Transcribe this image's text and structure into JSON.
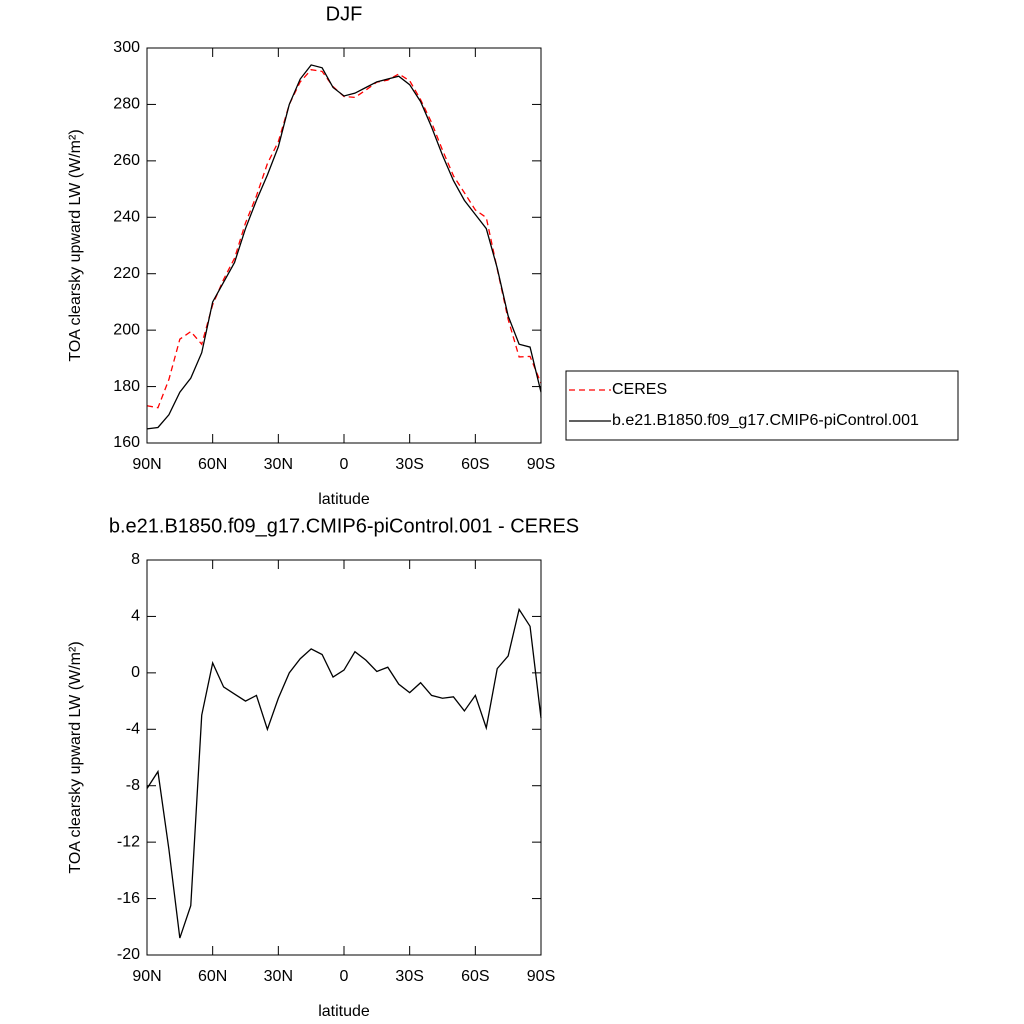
{
  "chart_data": [
    {
      "type": "line",
      "title": "DJF",
      "x_label": "latitude",
      "y_label": "TOA clearsky upward LW (W/m²)",
      "x": [
        90,
        85,
        80,
        75,
        70,
        65,
        60,
        55,
        50,
        45,
        40,
        35,
        30,
        25,
        20,
        15,
        10,
        5,
        0,
        -5,
        -10,
        -15,
        -20,
        -25,
        -30,
        -35,
        -40,
        -45,
        -50,
        -55,
        -60,
        -65,
        -70,
        -75,
        -80,
        -85,
        -90
      ],
      "series": [
        {
          "name": "CERES",
          "color": "#ff0000",
          "style": "dashed",
          "values": [
            173.2,
            172.5,
            182.5,
            196.8,
            199.5,
            195,
            209,
            218,
            225.5,
            238,
            247.6,
            259,
            266.8,
            280,
            288,
            292.3,
            291.7,
            286.3,
            282.8,
            282.5,
            285.1,
            287.9,
            288.6,
            290.8,
            288.4,
            281.7,
            273.6,
            263.8,
            254.7,
            248.7,
            242.6,
            239.9,
            221.7,
            203.8,
            190.5,
            190.7,
            181.2
          ]
        },
        {
          "name": "b.e21.B1850.f09_g17.CMIP6-piControl.001",
          "color": "#000000",
          "style": "solid",
          "values": [
            165,
            165.5,
            170,
            178,
            183,
            192,
            210,
            217,
            224,
            236,
            246,
            255,
            265,
            280,
            289,
            294,
            293,
            286,
            283,
            284,
            286,
            288,
            289,
            290,
            287,
            281,
            272,
            262,
            253,
            246,
            241,
            236,
            222,
            205,
            195,
            194,
            178
          ]
        }
      ],
      "xlim": [
        90,
        -90
      ],
      "ylim": [
        160,
        300
      ],
      "xticks": [
        {
          "value": 90,
          "label": "90N"
        },
        {
          "value": 60,
          "label": "60N"
        },
        {
          "value": 30,
          "label": "30N"
        },
        0,
        {
          "value": -30,
          "label": "30S"
        },
        {
          "value": -60,
          "label": "60S"
        },
        {
          "value": -90,
          "label": "90S"
        }
      ],
      "yticks": [
        160,
        180,
        200,
        220,
        240,
        260,
        280,
        300
      ],
      "legend": "outside-right"
    },
    {
      "type": "line",
      "title": "b.e21.B1850.f09_g17.CMIP6-piControl.001 - CERES",
      "x_label": "latitude",
      "y_label": "TOA clearsky upward LW (W/m²)",
      "x": [
        90,
        85,
        80,
        75,
        70,
        65,
        60,
        55,
        50,
        45,
        40,
        35,
        30,
        25,
        20,
        15,
        10,
        5,
        0,
        -5,
        -10,
        -15,
        -20,
        -25,
        -30,
        -35,
        -40,
        -45,
        -50,
        -55,
        -60,
        -65,
        -70,
        -75,
        -80,
        -85,
        -90
      ],
      "series": [
        {
          "color": "#000000",
          "style": "solid",
          "values": [
            -8.2,
            -7,
            -12.5,
            -18.8,
            -16.5,
            -3,
            0.7,
            -1,
            -1.5,
            -2,
            -1.6,
            -4,
            -1.8,
            0,
            1,
            1.7,
            1.3,
            -0.3,
            0.2,
            1.5,
            0.9,
            0.1,
            0.4,
            -0.8,
            -1.4,
            -0.7,
            -1.6,
            -1.8,
            -1.7,
            -2.7,
            -1.6,
            -3.9,
            0.3,
            1.2,
            4.5,
            3.3,
            -3.2
          ]
        }
      ],
      "xlim": [
        90,
        -90
      ],
      "ylim": [
        -20,
        8
      ],
      "xticks": [
        {
          "value": 90,
          "label": "90N"
        },
        {
          "value": 60,
          "label": "60N"
        },
        {
          "value": 30,
          "label": "30N"
        },
        0,
        {
          "value": -30,
          "label": "30S"
        },
        {
          "value": -60,
          "label": "60S"
        },
        {
          "value": -90,
          "label": "90S"
        }
      ],
      "yticks": [
        -20,
        -16,
        -12,
        -8,
        -4,
        0,
        4,
        8
      ]
    }
  ]
}
